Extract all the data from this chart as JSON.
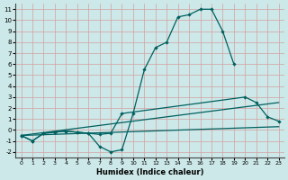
{
  "title": "",
  "xlabel": "Humidex (Indice chaleur)",
  "bg_color": "#cce8e8",
  "grid_color": "#d4a0a0",
  "line_color": "#006060",
  "xlim": [
    -0.5,
    23.5
  ],
  "ylim": [
    -2.5,
    11.5
  ],
  "xticks": [
    0,
    1,
    2,
    3,
    4,
    5,
    6,
    7,
    8,
    9,
    10,
    11,
    12,
    13,
    14,
    15,
    16,
    17,
    18,
    19,
    20,
    21,
    22,
    23
  ],
  "yticks": [
    -2,
    -1,
    0,
    1,
    2,
    3,
    4,
    5,
    6,
    7,
    8,
    9,
    10,
    11
  ],
  "curve1_x": [
    0,
    1,
    2,
    3,
    4,
    5,
    6,
    7,
    8,
    9,
    10,
    11,
    12,
    13,
    14,
    15,
    16,
    17,
    18,
    19
  ],
  "curve1_y": [
    -0.5,
    -1.0,
    -0.3,
    -0.2,
    -0.1,
    -0.2,
    -0.3,
    -1.5,
    -2.0,
    -1.8,
    1.5,
    5.5,
    7.5,
    8.0,
    10.3,
    10.5,
    11.0,
    11.0,
    9.0,
    6.0
  ],
  "curve2_x": [
    0,
    1,
    2,
    3,
    4,
    5,
    6,
    7,
    8,
    9,
    20,
    21,
    22,
    23
  ],
  "curve2_y": [
    -0.5,
    -1.0,
    -0.3,
    -0.2,
    -0.1,
    -0.2,
    -0.3,
    -0.4,
    -0.3,
    1.5,
    3.0,
    2.5,
    1.2,
    0.8
  ],
  "line1_x": [
    0,
    23
  ],
  "line1_y": [
    -0.5,
    0.3
  ],
  "line2_x": [
    0,
    23
  ],
  "line2_y": [
    -0.5,
    2.5
  ]
}
